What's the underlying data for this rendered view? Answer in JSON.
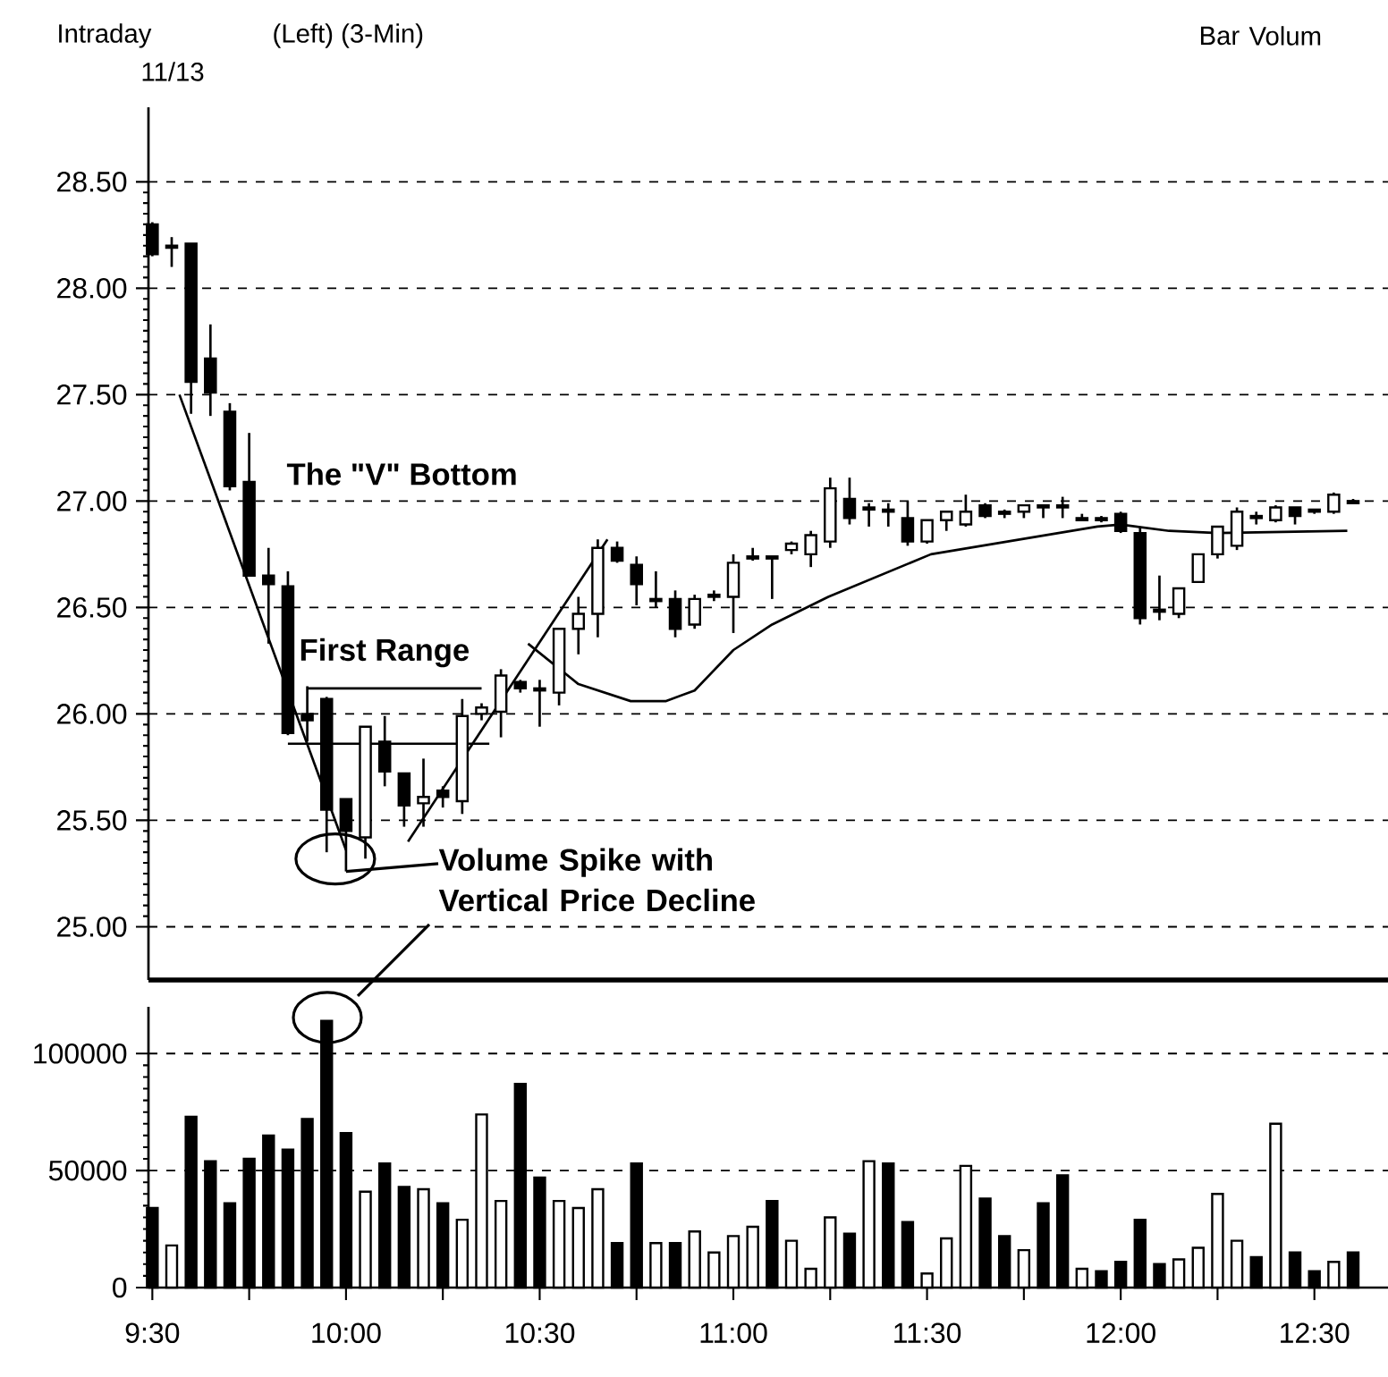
{
  "chart_data": [
    {
      "type": "candlestick",
      "title": "Intraday",
      "subtitle": "11/13",
      "annotations": [
        "(Left)  (3-Min)",
        "Bar",
        "Volum",
        "The \"V\" Bottom",
        "First Range",
        {
          "text": "Volume Spike with Vertical Price Decline",
          "x": 10,
          "y": 25.26
        }
      ],
      "x": [
        9.5,
        9.55,
        9.6,
        9.65,
        9.7,
        9.75,
        9.8,
        9.85,
        9.9,
        9.95,
        10,
        10.05,
        10.1,
        10.15,
        10.2,
        10.25,
        10.3,
        10.35,
        10.4,
        10.45,
        10.5,
        10.55,
        10.6,
        10.65,
        10.7,
        10.75,
        10.8,
        10.85,
        10.9,
        10.95,
        11,
        11.05,
        11.1,
        11.15,
        11.2,
        11.25,
        11.3,
        11.35,
        11.4,
        11.45,
        11.5,
        11.55,
        11.6,
        11.65,
        11.7,
        11.75,
        11.8,
        11.85,
        11.9,
        11.95,
        12,
        12.05,
        12.1,
        12.15,
        12.2,
        12.25,
        12.3,
        12.35,
        12.4,
        12.45,
        12.5,
        12.55,
        12.6
      ],
      "ohlc": [
        [
          28.3,
          28.31,
          28.15,
          28.16
        ],
        [
          28.19,
          28.24,
          28.1,
          28.2
        ],
        [
          28.21,
          28.21,
          27.41,
          27.56
        ],
        [
          27.67,
          27.83,
          27.4,
          27.51
        ],
        [
          27.42,
          27.46,
          27.05,
          27.07
        ],
        [
          27.09,
          27.32,
          26.65,
          26.65
        ],
        [
          26.65,
          26.78,
          26.33,
          26.61
        ],
        [
          26.6,
          26.67,
          25.9,
          25.91
        ],
        [
          26.0,
          26.13,
          25.87,
          25.97
        ],
        [
          26.07,
          26.08,
          25.35,
          25.55
        ],
        [
          25.6,
          25.6,
          25.26,
          25.45
        ],
        [
          25.42,
          25.94,
          25.32,
          25.94
        ],
        [
          25.87,
          25.99,
          25.66,
          25.73
        ],
        [
          25.72,
          25.72,
          25.47,
          25.57
        ],
        [
          25.58,
          25.79,
          25.47,
          25.61
        ],
        [
          25.64,
          25.66,
          25.56,
          25.61
        ],
        [
          25.59,
          26.07,
          25.53,
          25.99
        ],
        [
          26.0,
          26.05,
          25.97,
          26.03
        ],
        [
          26.01,
          26.21,
          25.89,
          26.18
        ],
        [
          26.15,
          26.16,
          26.1,
          26.12
        ],
        [
          26.12,
          26.16,
          25.94,
          26.11
        ],
        [
          26.1,
          26.4,
          26.04,
          26.4
        ],
        [
          26.4,
          26.55,
          26.28,
          26.47
        ],
        [
          26.47,
          26.82,
          26.36,
          26.78
        ],
        [
          26.78,
          26.81,
          26.71,
          26.72
        ],
        [
          26.7,
          26.74,
          26.51,
          26.61
        ],
        [
          26.53,
          26.67,
          26.5,
          26.54
        ],
        [
          26.54,
          26.58,
          26.36,
          26.4
        ],
        [
          26.42,
          26.56,
          26.4,
          26.54
        ],
        [
          26.55,
          26.58,
          26.53,
          26.56
        ],
        [
          26.55,
          26.75,
          26.38,
          26.71
        ],
        [
          26.73,
          26.78,
          26.72,
          26.74
        ],
        [
          26.74,
          26.74,
          26.54,
          26.73
        ],
        [
          26.77,
          26.81,
          26.75,
          26.8
        ],
        [
          26.75,
          26.86,
          26.69,
          26.84
        ],
        [
          26.81,
          27.11,
          26.78,
          27.06
        ],
        [
          27.01,
          27.11,
          26.89,
          26.92
        ],
        [
          26.96,
          26.99,
          26.88,
          26.97
        ],
        [
          26.96,
          26.99,
          26.88,
          26.95
        ],
        [
          26.92,
          27.0,
          26.79,
          26.81
        ],
        [
          26.81,
          26.91,
          26.8,
          26.91
        ],
        [
          26.91,
          26.95,
          26.86,
          26.95
        ],
        [
          26.89,
          27.03,
          26.88,
          26.95
        ],
        [
          26.98,
          26.99,
          26.92,
          26.93
        ],
        [
          26.95,
          26.96,
          26.92,
          26.94
        ],
        [
          26.95,
          26.98,
          26.92,
          26.98
        ],
        [
          26.98,
          26.98,
          26.92,
          26.97
        ],
        [
          26.98,
          27.02,
          26.92,
          26.97
        ],
        [
          26.91,
          26.94,
          26.91,
          26.92
        ],
        [
          26.92,
          26.93,
          26.9,
          26.91
        ],
        [
          26.94,
          26.95,
          26.85,
          26.86
        ],
        [
          26.85,
          26.88,
          26.42,
          26.45
        ],
        [
          26.49,
          26.65,
          26.44,
          26.48
        ],
        [
          26.47,
          26.59,
          26.45,
          26.59
        ],
        [
          26.62,
          26.75,
          26.62,
          26.75
        ],
        [
          26.75,
          26.88,
          26.73,
          26.88
        ],
        [
          26.79,
          26.97,
          26.77,
          26.95
        ],
        [
          26.93,
          26.95,
          26.89,
          26.92
        ],
        [
          26.91,
          26.98,
          26.9,
          26.97
        ],
        [
          26.97,
          26.97,
          26.89,
          26.93
        ],
        [
          26.96,
          26.96,
          26.94,
          26.95
        ],
        [
          26.95,
          27.04,
          26.94,
          27.03
        ],
        [
          27.0,
          27.01,
          26.99,
          26.99
        ]
      ],
      "series": [
        {
          "type": "line",
          "color": "#000000",
          "x": [
            10.47,
            10.6,
            10.735,
            10.825,
            10.9,
            11.0,
            11.1,
            11.245,
            11.51,
            11.94,
            12.0,
            12.125,
            12.25,
            12.585
          ],
          "values": [
            26.33,
            26.14,
            26.06,
            26.06,
            26.11,
            26.3,
            26.42,
            26.55,
            26.75,
            26.88,
            26.89,
            26.86,
            26.85,
            26.86
          ]
        },
        {
          "type": "line",
          "color": "#000000",
          "x": [
            9.57,
            10.0
          ],
          "values": [
            27.5,
            25.36
          ]
        },
        {
          "type": "line",
          "color": "#000000",
          "x": [
            10.16,
            10.675
          ],
          "values": [
            25.4,
            26.82
          ]
        },
        {
          "type": "line",
          "color": "#000000",
          "x": [
            9.9,
            10.35
          ],
          "values": [
            26.12,
            26.12
          ]
        },
        {
          "type": "line",
          "color": "#000000",
          "x": [
            9.85,
            10.37
          ],
          "values": [
            25.86,
            25.86
          ]
        }
      ],
      "xlim": [
        9.49,
        12.69
      ],
      "ylim": [
        24.75,
        28.85
      ],
      "yticks": [
        {
          "value": 25,
          "label": "25.00"
        },
        {
          "value": 25.5,
          "label": "25.50"
        },
        {
          "value": 26,
          "label": "26.00"
        },
        {
          "value": 26.5,
          "label": "26.50"
        },
        {
          "value": 27,
          "label": "27.00"
        },
        {
          "value": 27.5,
          "label": "27.50"
        },
        {
          "value": 28,
          "label": "28.00"
        },
        {
          "value": 28.5,
          "label": "28.50"
        }
      ],
      "tick_labels": "y",
      "grid": "y"
    },
    {
      "type": "bar",
      "x": [
        9.5,
        9.55,
        9.6,
        9.65,
        9.7,
        9.75,
        9.8,
        9.85,
        9.9,
        9.95,
        10,
        10.05,
        10.1,
        10.15,
        10.2,
        10.25,
        10.3,
        10.35,
        10.4,
        10.45,
        10.5,
        10.55,
        10.6,
        10.65,
        10.7,
        10.75,
        10.8,
        10.85,
        10.9,
        10.95,
        11,
        11.05,
        11.1,
        11.15,
        11.2,
        11.25,
        11.3,
        11.35,
        11.4,
        11.45,
        11.5,
        11.55,
        11.6,
        11.65,
        11.7,
        11.75,
        11.8,
        11.85,
        11.9,
        11.95,
        12,
        12.05,
        12.1,
        12.15,
        12.2,
        12.25,
        12.3,
        12.35,
        12.4,
        12.45,
        12.5,
        12.55,
        12.6
      ],
      "values": [
        34000,
        18000,
        73000,
        54000,
        36000,
        55000,
        65000,
        59000,
        72000,
        114000,
        66000,
        41000,
        53000,
        43000,
        42000,
        36000,
        29000,
        74000,
        37000,
        87000,
        47000,
        37000,
        34000,
        42000,
        19000,
        53000,
        19000,
        19000,
        24000,
        15000,
        22000,
        26000,
        37000,
        20000,
        8000,
        30000,
        23000,
        54000,
        53000,
        28000,
        6000,
        21000,
        52000,
        38000,
        22000,
        16000,
        36000,
        48000,
        8000,
        7000,
        11000,
        29000,
        10000,
        12000,
        17000,
        40000,
        20000,
        13000,
        70000,
        15000,
        7000,
        11000,
        15000
      ],
      "colors": [
        "#000000",
        "#ffffff",
        "#000000",
        "#000000",
        "#000000",
        "#000000",
        "#000000",
        "#000000",
        "#000000",
        "#000000",
        "#000000",
        "#ffffff",
        "#000000",
        "#000000",
        "#ffffff",
        "#000000",
        "#ffffff",
        "#ffffff",
        "#ffffff",
        "#000000",
        "#000000",
        "#ffffff",
        "#ffffff",
        "#ffffff",
        "#000000",
        "#000000",
        "#ffffff",
        "#000000",
        "#ffffff",
        "#ffffff",
        "#ffffff",
        "#ffffff",
        "#000000",
        "#ffffff",
        "#ffffff",
        "#ffffff",
        "#000000",
        "#ffffff",
        "#000000",
        "#000000",
        "#ffffff",
        "#ffffff",
        "#ffffff",
        "#000000",
        "#000000",
        "#ffffff",
        "#000000",
        "#000000",
        "#ffffff",
        "#000000",
        "#000000",
        "#000000",
        "#000000",
        "#ffffff",
        "#ffffff",
        "#ffffff",
        "#ffffff",
        "#000000",
        "#ffffff",
        "#000000",
        "#000000",
        "#ffffff",
        "#000000"
      ],
      "xlim": [
        9.49,
        12.69
      ],
      "ylim": [
        0,
        120000
      ],
      "xticks": [
        {
          "value": 9.5,
          "label": "9:30"
        },
        {
          "value": 9.75,
          "label": null
        },
        {
          "value": 10,
          "label": "10:00"
        },
        {
          "value": 10.25,
          "label": null
        },
        {
          "value": 10.5,
          "label": "10:30"
        },
        {
          "value": 10.75,
          "label": null
        },
        {
          "value": 11,
          "label": "11:00"
        },
        {
          "value": 11.25,
          "label": null
        },
        {
          "value": 11.5,
          "label": "11:30"
        },
        {
          "value": 11.75,
          "label": null
        },
        {
          "value": 12,
          "label": "12:00"
        },
        {
          "value": 12.25,
          "label": null
        },
        {
          "value": 12.5,
          "label": "12:30"
        }
      ],
      "yticks": [
        0,
        50000,
        100000
      ],
      "grid": "y"
    }
  ]
}
